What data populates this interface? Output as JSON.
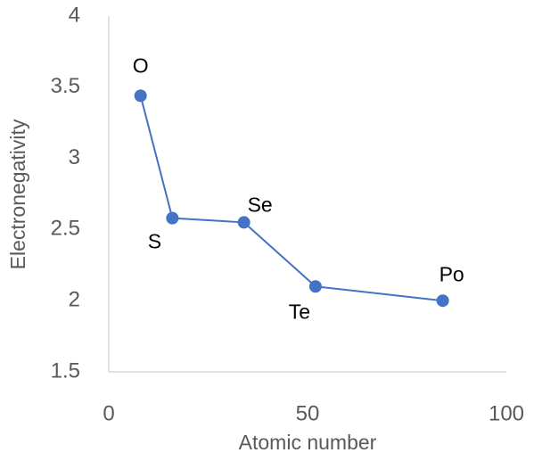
{
  "chart_data": {
    "type": "line",
    "x_label": "Atomic number",
    "y_label": "Electronegativity",
    "x": [
      8,
      16,
      34,
      52,
      84
    ],
    "series": [
      {
        "color": "#4472c4",
        "values": [
          3.44,
          2.58,
          2.55,
          2.1,
          2.0
        ],
        "point_labels": [
          "O",
          "S",
          "Se",
          "Te",
          "Po"
        ]
      }
    ],
    "xlim": [
      0,
      100
    ],
    "xticks": [
      0,
      50,
      100
    ],
    "ylim": [
      1.5,
      4
    ],
    "yticks": [
      1.5,
      2,
      2.5,
      3,
      3.5,
      4
    ],
    "grid": false
  }
}
